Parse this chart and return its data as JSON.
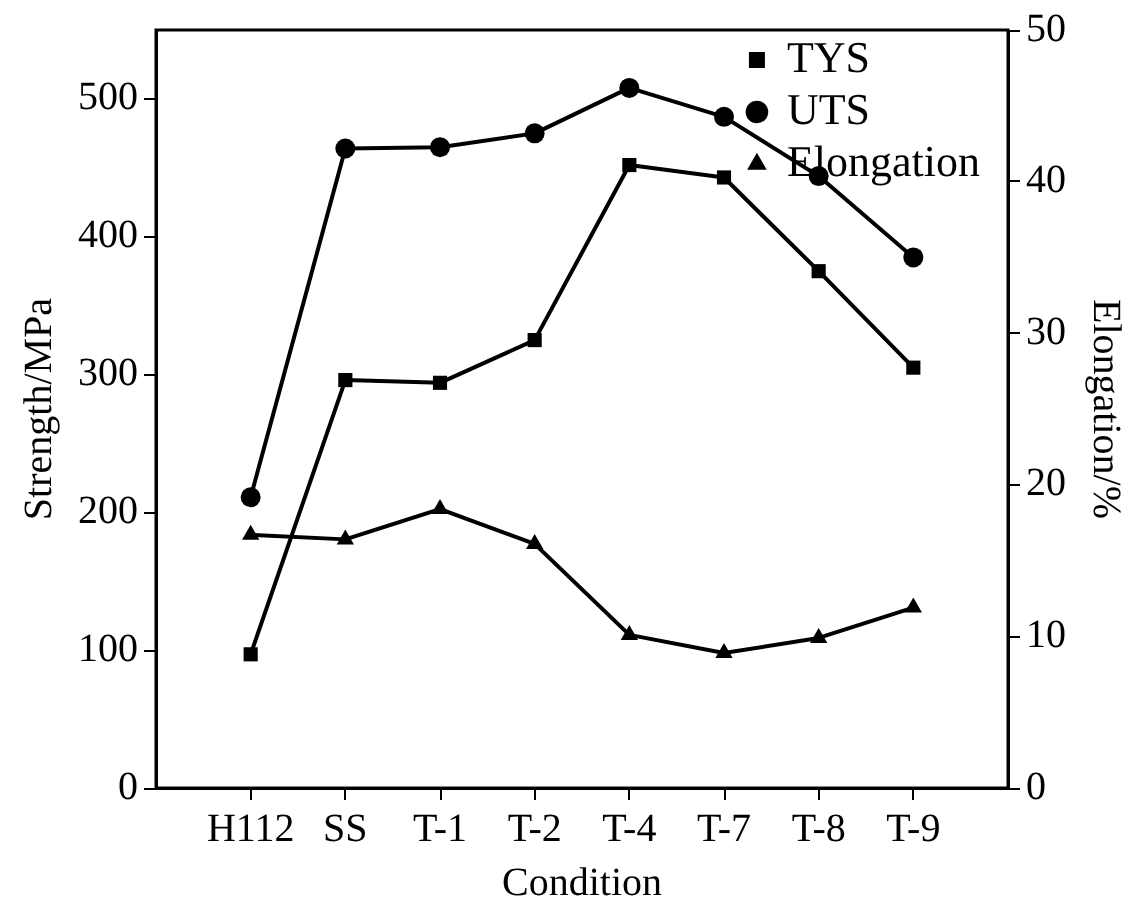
{
  "chart_data": {
    "type": "line",
    "xlabel": "Condition",
    "ylabel": "Strength/MPa",
    "y2label": "Elongation/%",
    "categories": [
      "H112",
      "SS",
      "T-1",
      "T-2",
      "T-4",
      "T-7",
      "T-8",
      "T-9"
    ],
    "ylim": [
      0,
      550
    ],
    "yticks": [
      0,
      100,
      200,
      300,
      400,
      500
    ],
    "y2lim": [
      0,
      50
    ],
    "y2ticks": [
      0,
      10,
      20,
      30,
      40,
      50
    ],
    "legend": "center right",
    "line_style": "solid",
    "series": [
      {
        "name": "TYS",
        "color": "#000000",
        "marker": "square",
        "values": [
          97,
          296,
          294,
          325,
          452,
          443,
          375,
          305
        ]
      },
      {
        "name": "UTS",
        "color": "#000000",
        "marker": "circle",
        "values": [
          211,
          464,
          465,
          475,
          508,
          487,
          444,
          385
        ]
      },
      {
        "name": "Elongation",
        "color": "#000000",
        "marker": "triangle",
        "axis": "y2",
        "values": [
          16.7,
          16.4,
          18.4,
          16.1,
          10.1,
          8.9,
          9.9,
          11.9
        ]
      }
    ]
  }
}
